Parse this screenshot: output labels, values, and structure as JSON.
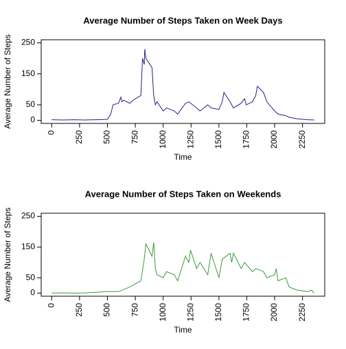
{
  "chart_data": [
    {
      "type": "line",
      "title": "Average Number of Steps Taken on Week Days",
      "xlabel": "Time",
      "ylabel": "Average Number of Steps",
      "color": "#1f1f8a",
      "x": [
        0,
        100,
        200,
        300,
        400,
        500,
        530,
        550,
        600,
        620,
        630,
        645,
        700,
        715,
        730,
        800,
        815,
        830,
        835,
        845,
        900,
        915,
        930,
        945,
        1000,
        1030,
        1100,
        1130,
        1200,
        1230,
        1300,
        1330,
        1400,
        1430,
        1500,
        1530,
        1545,
        1600,
        1630,
        1700,
        1730,
        1745,
        1800,
        1830,
        1845,
        1900,
        1930,
        2000,
        2030,
        2100,
        2130,
        2200,
        2300,
        2355
      ],
      "values": [
        2,
        1,
        2,
        1,
        2,
        3,
        20,
        50,
        55,
        75,
        60,
        65,
        55,
        60,
        65,
        80,
        200,
        180,
        230,
        200,
        170,
        80,
        50,
        60,
        30,
        40,
        30,
        20,
        55,
        60,
        40,
        30,
        50,
        40,
        35,
        60,
        90,
        60,
        40,
        55,
        70,
        50,
        60,
        80,
        110,
        90,
        60,
        30,
        20,
        15,
        10,
        5,
        2,
        1
      ],
      "xlim": [
        -94.2,
        2449.2
      ],
      "ylim": [
        -10,
        260
      ],
      "xticks": [
        0,
        250,
        500,
        750,
        1000,
        1250,
        1500,
        1750,
        2000,
        2250
      ],
      "yticks": [
        0,
        50,
        150,
        250
      ]
    },
    {
      "type": "line",
      "title": "Average Number of Steps Taken on Weekends",
      "xlabel": "Time",
      "ylabel": "Average Number of Steps",
      "color": "#3a9a3a",
      "x": [
        0,
        100,
        200,
        300,
        400,
        500,
        600,
        700,
        800,
        830,
        845,
        900,
        915,
        930,
        945,
        1000,
        1030,
        1100,
        1130,
        1200,
        1230,
        1245,
        1300,
        1330,
        1400,
        1430,
        1500,
        1530,
        1600,
        1615,
        1630,
        1700,
        1730,
        1800,
        1830,
        1900,
        1930,
        2000,
        2015,
        2030,
        2100,
        2130,
        2200,
        2300,
        2330,
        2355
      ],
      "values": [
        0,
        1,
        0,
        1,
        3,
        5,
        5,
        20,
        40,
        110,
        160,
        120,
        165,
        80,
        60,
        50,
        70,
        60,
        40,
        120,
        100,
        140,
        80,
        100,
        60,
        130,
        50,
        110,
        130,
        100,
        130,
        80,
        100,
        70,
        80,
        70,
        50,
        60,
        80,
        40,
        50,
        20,
        10,
        5,
        10,
        0
      ],
      "xlim": [
        -94.2,
        2449.2
      ],
      "ylim": [
        -10,
        260
      ],
      "xticks": [
        0,
        250,
        500,
        750,
        1000,
        1250,
        1500,
        1750,
        2000,
        2250
      ],
      "yticks": [
        0,
        50,
        150,
        250
      ]
    }
  ]
}
